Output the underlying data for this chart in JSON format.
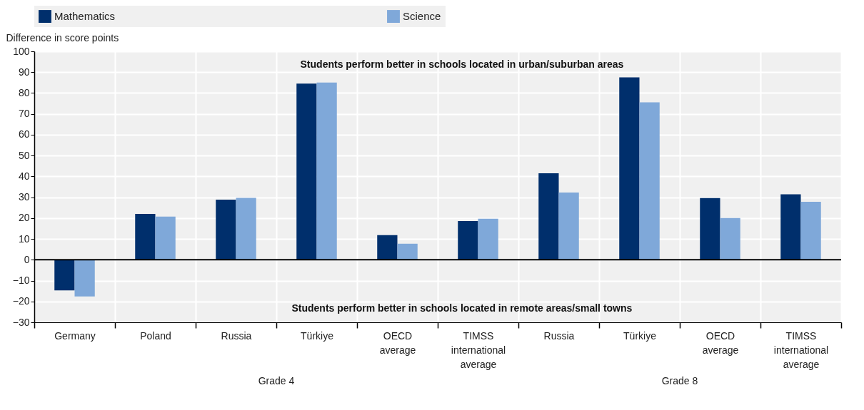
{
  "chart_data": {
    "type": "bar",
    "ylabel": "Difference in score points",
    "categories": [
      "Germany",
      "Poland",
      "Russia",
      "Türkiye",
      "OECD average",
      "TIMSS international average",
      "Russia",
      "Türkiye",
      "OECD average",
      "TIMSS international average"
    ],
    "series": [
      {
        "name": "Mathematics",
        "color": "#002f6c",
        "values": [
          -14.7,
          22.0,
          28.8,
          84.5,
          11.8,
          18.6,
          41.5,
          87.5,
          29.6,
          31.4
        ]
      },
      {
        "name": "Science",
        "color": "#7fa8d9",
        "values": [
          -17.6,
          20.7,
          29.7,
          85.0,
          7.7,
          19.7,
          32.3,
          75.5,
          20.0,
          27.8
        ]
      }
    ],
    "ylim": [
      -30,
      100
    ],
    "yticks": [
      -30,
      -20,
      -10,
      0,
      10,
      20,
      30,
      40,
      50,
      60,
      70,
      80,
      90,
      100
    ],
    "grid": true,
    "legend": "top",
    "ref_lines": [
      {
        "axis": "y",
        "value": 0
      }
    ],
    "annotations": [
      "Students perform better in schools located in urban/suburban areas",
      "Students perform better in schools located in remote areas/small towns",
      "Grade 4",
      "Grade 8"
    ]
  }
}
